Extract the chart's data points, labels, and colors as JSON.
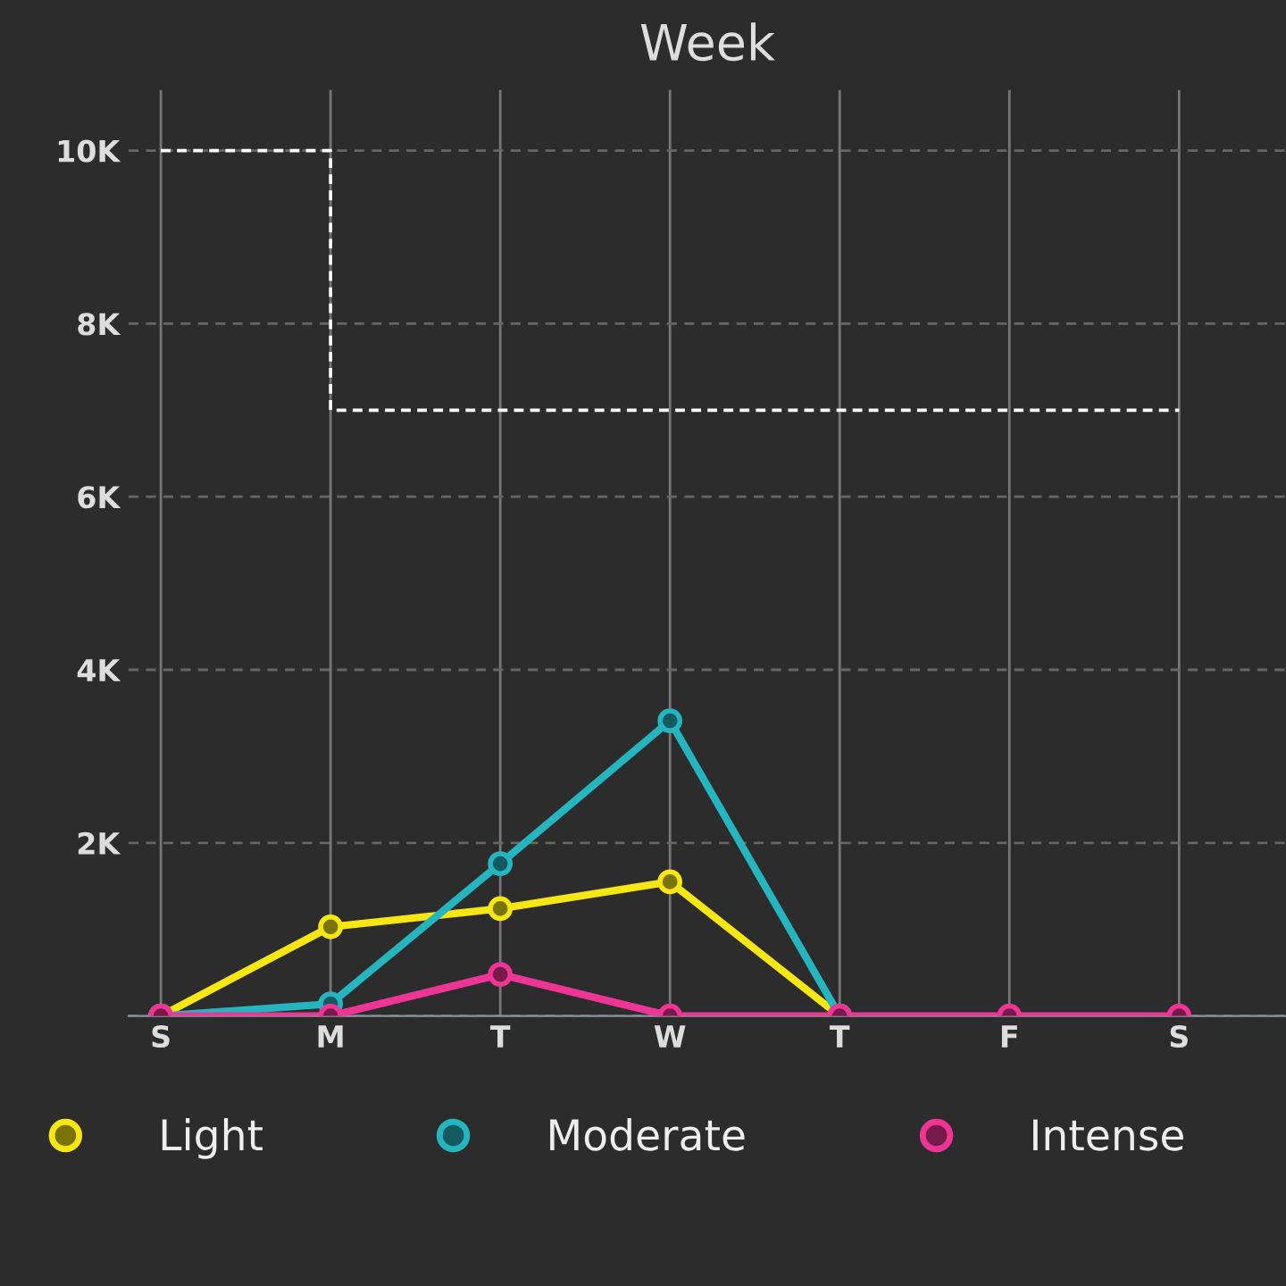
{
  "chart_data": {
    "type": "line",
    "title": "Week",
    "categories": [
      "S",
      "M",
      "T",
      "W",
      "T",
      "F",
      "S"
    ],
    "series": [
      {
        "name": "Light",
        "color": "#f5e614",
        "values": [
          0,
          1030,
          1240,
          1550,
          0,
          null,
          null
        ]
      },
      {
        "name": "Moderate",
        "color": "#25b5bf",
        "values": [
          0,
          140,
          1760,
          3410,
          0,
          null,
          null
        ]
      },
      {
        "name": "Intense",
        "color": "#ec3594",
        "values": [
          0,
          0,
          480,
          0,
          0,
          0,
          0
        ]
      },
      {
        "type": "step",
        "color": "#ffffff",
        "line_style": "dashed",
        "marker": "none",
        "values": [
          10000,
          7000,
          7000,
          7000,
          7000,
          7000,
          7000
        ]
      }
    ],
    "ylim": [
      0,
      10700
    ],
    "yticks": [
      {
        "value": 0,
        "label": null
      },
      {
        "value": 2000,
        "label": "2K"
      },
      {
        "value": 4000,
        "label": "4K"
      },
      {
        "value": 6000,
        "label": "6K"
      },
      {
        "value": 8000,
        "label": "8K"
      },
      {
        "value": 10000,
        "label": "10K"
      }
    ],
    "grid": true,
    "legend": "bottom",
    "marker": "circle",
    "line_style": "solid"
  }
}
